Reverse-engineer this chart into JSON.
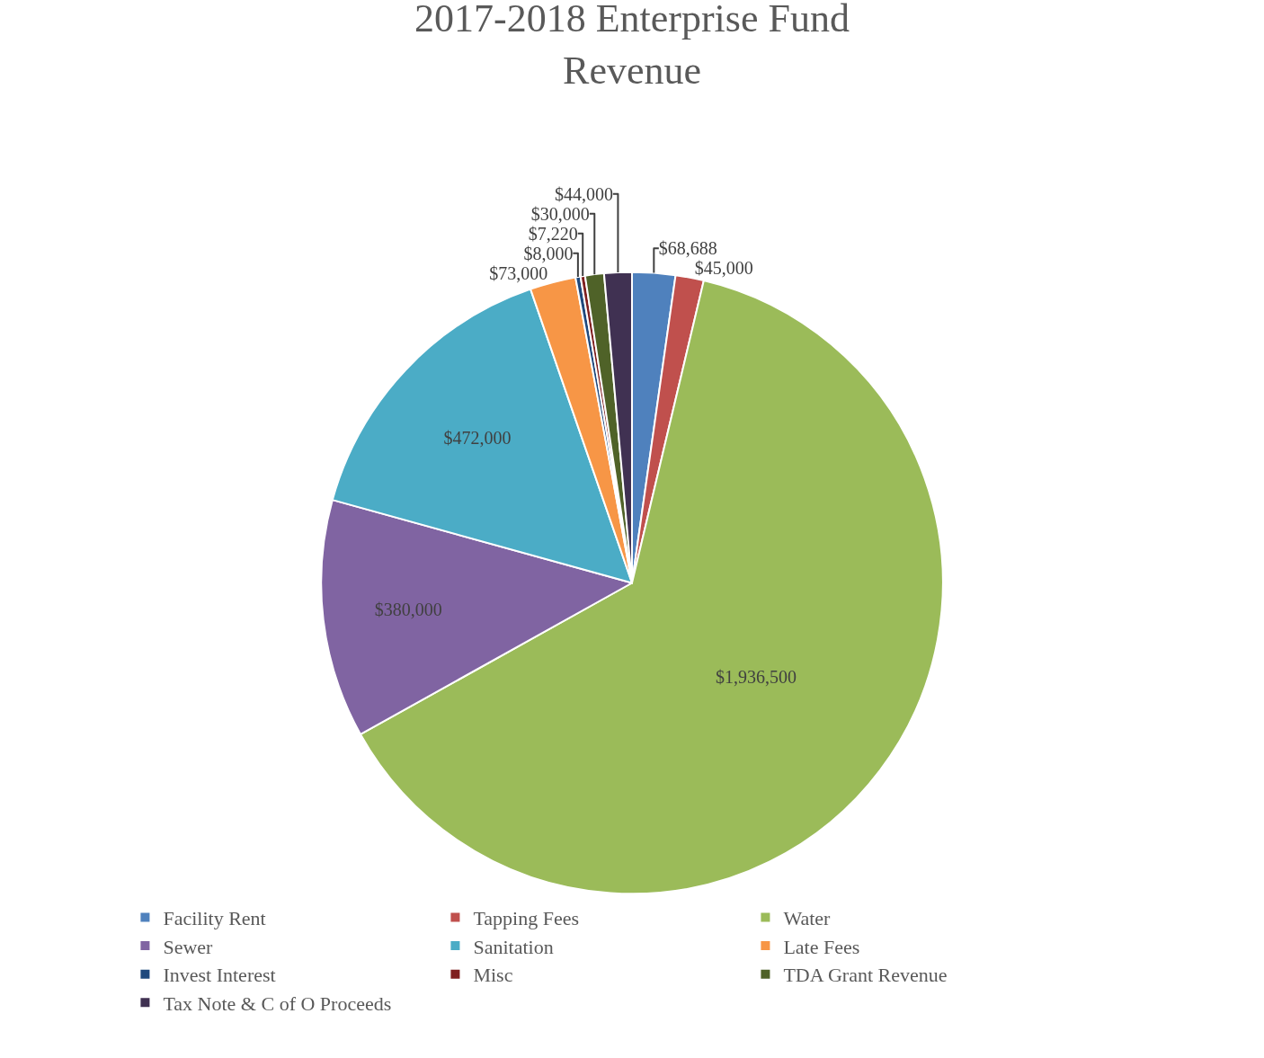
{
  "chart_data": {
    "type": "pie",
    "title": "2017-2018 Enterprise Fund\nRevenue",
    "categories": [
      "Facility Rent",
      "Tapping Fees",
      "Water",
      "Sewer",
      "Sanitation",
      "Late Fees",
      "Invest Interest",
      "Misc",
      "TDA Grant Revenue",
      "Tax Note & C of O Proceeds"
    ],
    "values": [
      68688,
      45000,
      1936500,
      380000,
      472000,
      73000,
      8000,
      7220,
      30000,
      44000
    ],
    "value_labels": [
      "$68,688",
      "$45,000",
      "$1,936,500",
      "$380,000",
      "$472,000",
      "$73,000",
      "$8,000",
      "$7,220",
      "$30,000",
      "$44,000"
    ],
    "colors": [
      "#4f81bd",
      "#c0504d",
      "#9bbb59",
      "#8064a2",
      "#4bacc6",
      "#f79646",
      "#1f497d",
      "#7f1f1f",
      "#4f6228",
      "#403152"
    ],
    "legend": "bottom"
  }
}
